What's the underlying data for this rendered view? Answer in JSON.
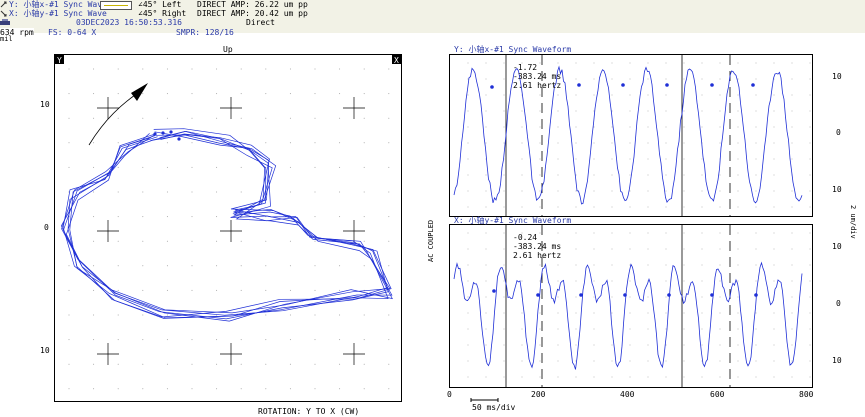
{
  "header": {
    "ch_y": "Y: 小轴x-#1 Sync Wave",
    "ch_x": "X: 小轴y-#1 Sync Wave",
    "angle_left": "∠45° Left",
    "angle_right": "∠45° Right",
    "amp_y": "DIRECT AMP: 26.22 um pp",
    "amp_x": "DIRECT AMP: 20.42 um pp",
    "timestamp": "03DEC2023 16:50:53.316",
    "mode": "Direct",
    "rpm": "634 rpm",
    "fs": "FS: 0-64 X",
    "smpr": "SMPR: 128/16",
    "unit": "mil",
    "colors": {
      "bg": "#f2f2e6",
      "trace": "#1f2fd6",
      "text_blue": "#2a3aa8"
    }
  },
  "orbit": {
    "up_label": "Up",
    "y_corner": "Y",
    "x_corner": "X",
    "ticks": [
      "10",
      "0",
      "10"
    ],
    "rotation_label": "ROTATION: Y TO X (CW)"
  },
  "waveform_top": {
    "title": "Y: 小轴x-#1 Sync Waveform",
    "readout": [
      "-1.72",
      "-383.24 ms",
      "2.61 hertz"
    ],
    "yticks": [
      "10",
      "0",
      "10"
    ]
  },
  "waveform_bottom": {
    "title": "X: 小轴y-#1 Sync Waveform",
    "readout": [
      "-0.24",
      "-383.24 ms",
      "2.61 hertz"
    ],
    "yticks": [
      "10",
      "0",
      "10"
    ],
    "xticks": [
      "0",
      "200",
      "400",
      "600",
      "800"
    ]
  },
  "side_labels": {
    "coupling": "AC COUPLED",
    "scale": "2 um/div"
  },
  "scale_bar": "50 ms/div"
}
